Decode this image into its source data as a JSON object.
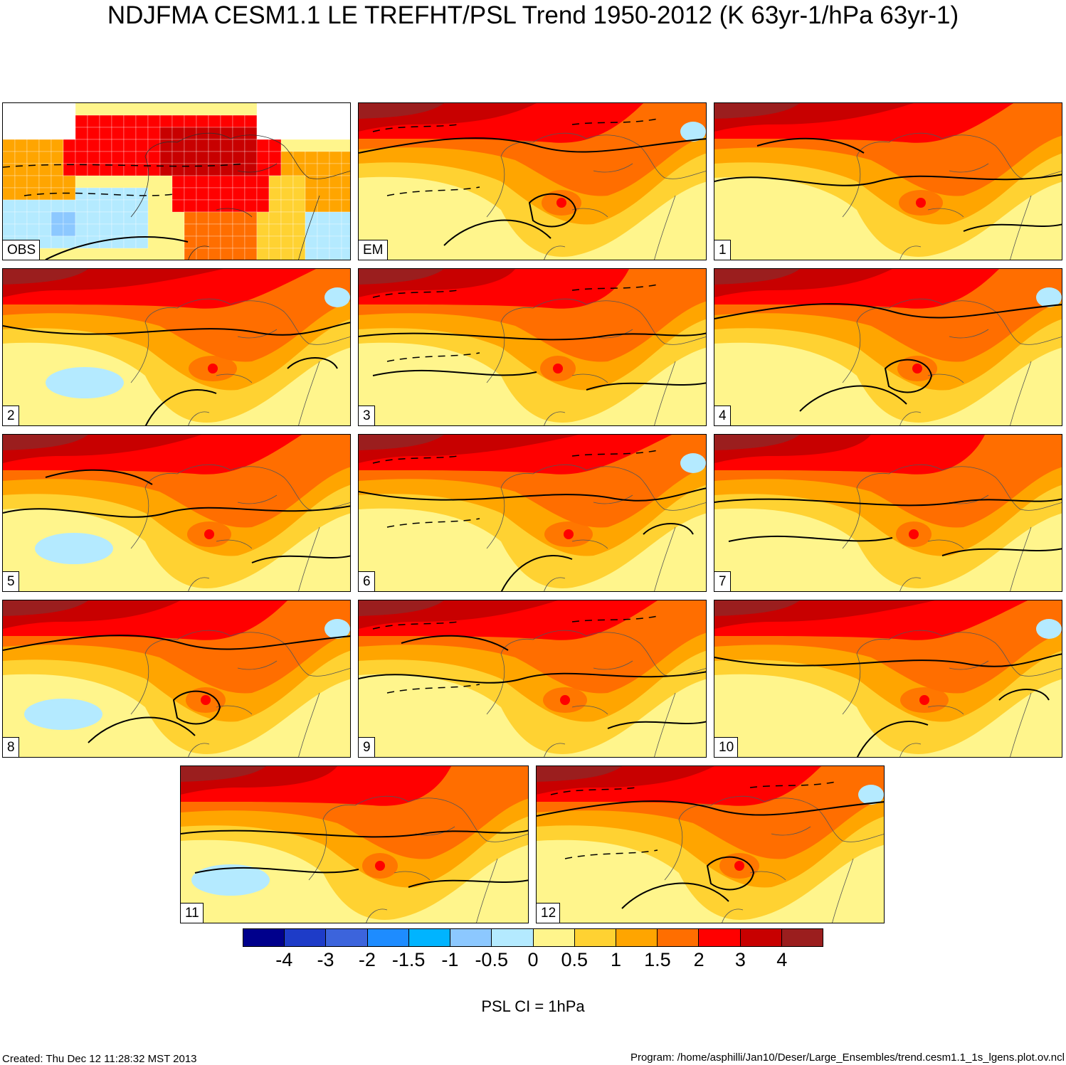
{
  "title": "NDJFMA CESM1.1 LE TREFHT/PSL Trend 1950-2012 (K 63yr-1/hPa 63yr-1)",
  "panels": [
    {
      "label": "OBS",
      "style": "obs"
    },
    {
      "label": "EM",
      "style": "model"
    },
    {
      "label": "1",
      "style": "model"
    },
    {
      "label": "2",
      "style": "model"
    },
    {
      "label": "3",
      "style": "model"
    },
    {
      "label": "4",
      "style": "model"
    },
    {
      "label": "5",
      "style": "model"
    },
    {
      "label": "6",
      "style": "model"
    },
    {
      "label": "7",
      "style": "model"
    },
    {
      "label": "8",
      "style": "model"
    },
    {
      "label": "9",
      "style": "model"
    },
    {
      "label": "10",
      "style": "model"
    },
    {
      "label": "11",
      "style": "model"
    },
    {
      "label": "12",
      "style": "model"
    }
  ],
  "colorbar": {
    "colors": [
      "#00008c",
      "#1e3cc8",
      "#3c64dc",
      "#1e8cff",
      "#00b4ff",
      "#8cc8ff",
      "#b4eaff",
      "#fff58c",
      "#ffd232",
      "#ffa500",
      "#ff6e00",
      "#ff0000",
      "#c80000",
      "#9b1e1e"
    ],
    "labels": [
      "-4",
      "-3",
      "-2",
      "-1.5",
      "-1",
      "-0.5",
      "0",
      "0.5",
      "1",
      "1.5",
      "2",
      "3",
      "4"
    ]
  },
  "contour_note": "PSL CI = 1hPa",
  "created": "Created: Thu Dec 12 11:28:32 MST 2013",
  "program": "Program: /home/asphilli/Jan10/Deser/Large_Ensembles/trend.cesm1.1_1s_lgens.plot.ov.ncl"
}
